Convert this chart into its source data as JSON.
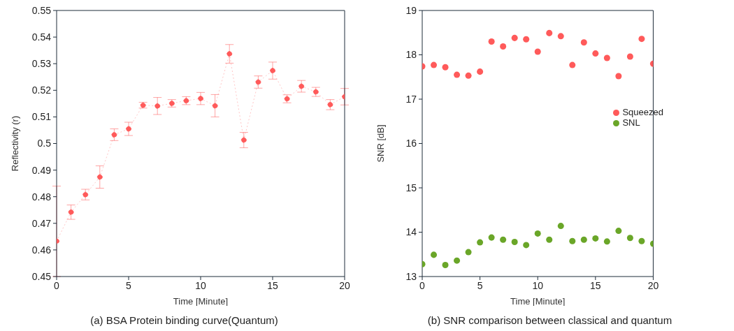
{
  "chart_data": [
    {
      "type": "line",
      "xlabel": "Time [Minute]",
      "ylabel": "Reflectivity (r)",
      "annotations": [
        "(a) BSA Protein binding curve(Quantum)"
      ],
      "x": [
        0,
        1,
        2,
        3,
        4,
        5,
        6,
        7,
        8,
        9,
        10,
        11,
        12,
        13,
        14,
        15,
        16,
        17,
        18,
        19,
        20
      ],
      "series": [
        {
          "color": "#ff5a5a",
          "values": [
            0.4633,
            0.4742,
            0.4808,
            0.4874,
            0.5033,
            0.5055,
            0.5144,
            0.5141,
            0.5151,
            0.5161,
            0.5169,
            0.5142,
            0.5337,
            0.5013,
            0.5231,
            0.5274,
            0.5168,
            0.5215,
            0.5194,
            0.5146,
            0.5176
          ],
          "errors": [
            [
              0.45,
              0.484
            ],
            0.0027,
            0.002,
            0.0042,
            0.0022,
            0.0025,
            0.0011,
            0.0032,
            0.0014,
            0.0015,
            0.0023,
            0.0042,
            0.0035,
            0.0029,
            0.0023,
            0.0032,
            0.0015,
            0.0022,
            0.0017,
            0.0019,
            0.0031
          ]
        }
      ],
      "xlim": [
        0,
        20
      ],
      "xticks": [
        0,
        5,
        10,
        15,
        20
      ],
      "ylim": [
        0.45,
        0.55
      ],
      "yticks": [
        0.45,
        0.46,
        0.47,
        0.48,
        0.49,
        0.5,
        0.51,
        0.52,
        0.53,
        0.54,
        0.55
      ],
      "grid": false,
      "legend": false,
      "marker": "circle",
      "line_style": "dotted"
    },
    {
      "type": "scatter",
      "xlabel": "Time [Minute]",
      "ylabel": "SNR [dB]",
      "annotations": [
        "(b) SNR comparison between classical and quantum"
      ],
      "x": [
        0,
        1,
        2,
        3,
        4,
        5,
        6,
        7,
        8,
        9,
        10,
        11,
        12,
        13,
        14,
        15,
        16,
        17,
        18,
        19,
        20
      ],
      "series": [
        {
          "name": "Squeezed",
          "color": "#ff5a5a",
          "values": [
            17.74,
            17.77,
            17.72,
            17.55,
            17.53,
            17.62,
            18.3,
            18.19,
            18.38,
            18.35,
            18.07,
            18.49,
            18.42,
            17.77,
            18.28,
            18.03,
            17.93,
            17.52,
            17.96,
            18.36,
            17.8
          ]
        },
        {
          "name": "SNL",
          "color": "#6aa628",
          "values": [
            13.28,
            13.49,
            13.26,
            13.36,
            13.55,
            13.77,
            13.88,
            13.83,
            13.78,
            13.71,
            13.97,
            13.83,
            14.14,
            13.8,
            13.83,
            13.86,
            13.79,
            14.03,
            13.87,
            13.8,
            13.74
          ]
        }
      ],
      "xlim": [
        0,
        20
      ],
      "xticks": [
        0,
        5,
        10,
        15,
        20
      ],
      "ylim": [
        13,
        19
      ],
      "yticks": [
        13,
        14,
        15,
        16,
        17,
        18,
        19
      ],
      "grid": false,
      "legend": "right",
      "marker": "circle"
    }
  ]
}
